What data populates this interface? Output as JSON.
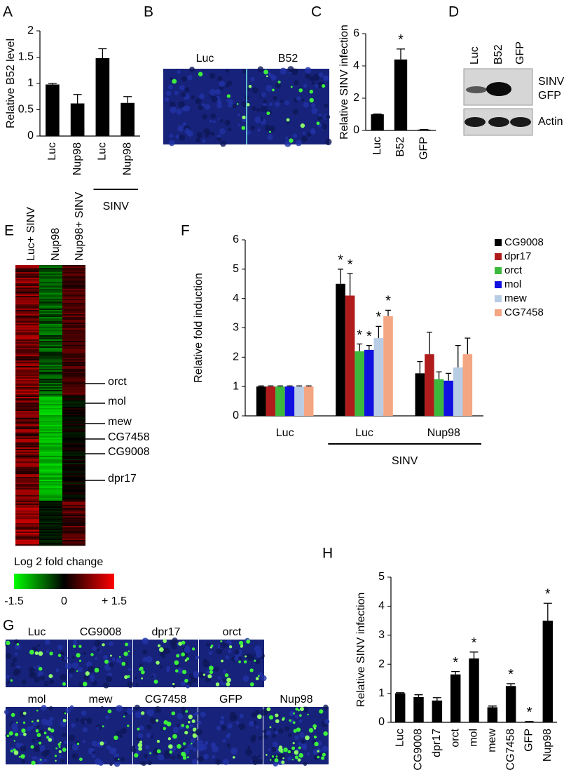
{
  "chart_data": [
    {
      "type": "bar",
      "panel": "A",
      "ylabel": "Relative B52 level",
      "categories": [
        "Luc",
        "Nup98",
        "Luc",
        "Nup98"
      ],
      "values": [
        0.98,
        0.62,
        1.48,
        0.63
      ],
      "errors": [
        0.02,
        0.17,
        0.18,
        0.12
      ],
      "color": "#000000",
      "ylim": [
        0,
        2
      ],
      "yticks": [
        0,
        0.5,
        1,
        1.5,
        2
      ],
      "annotation": "SINV"
    },
    {
      "type": "bar",
      "panel": "C",
      "ylabel": "Relative SINV  infection",
      "categories": [
        "Luc",
        "B52",
        "GFP"
      ],
      "values": [
        1,
        4.4,
        0.05
      ],
      "errors": [
        0.02,
        0.65,
        0.01
      ],
      "significance": [
        null,
        "*",
        null
      ],
      "color": "#000000",
      "ylim": [
        0,
        6
      ],
      "yticks": [
        0,
        2,
        4,
        6
      ]
    },
    {
      "type": "bar",
      "panel": "F",
      "ylabel": "Relative fold induction",
      "categories": [
        "Luc",
        "Luc",
        "Nup98"
      ],
      "annotation": "SINV",
      "legend": "right",
      "series": [
        {
          "name": "CG9008",
          "color": "#000000",
          "values": [
            1,
            4.5,
            1.45
          ],
          "errors": [
            0.02,
            0.5,
            0.4
          ],
          "significance": [
            null,
            "*",
            null
          ]
        },
        {
          "name": "dpr17",
          "color": "#b01c1c",
          "values": [
            1,
            4.1,
            2.1
          ],
          "errors": [
            0.02,
            0.75,
            0.75
          ],
          "significance": [
            null,
            "*",
            null
          ]
        },
        {
          "name": "orct",
          "color": "#3cb83c",
          "values": [
            1,
            2.2,
            1.25
          ],
          "errors": [
            0.02,
            0.25,
            0.25
          ],
          "significance": [
            null,
            "*",
            null
          ]
        },
        {
          "name": "mol",
          "color": "#1010e0",
          "values": [
            1,
            2.25,
            1.2
          ],
          "errors": [
            0.02,
            0.15,
            0.25
          ],
          "significance": [
            null,
            "*",
            null
          ]
        },
        {
          "name": "mew",
          "color": "#b8cce4",
          "values": [
            1,
            2.65,
            1.65
          ],
          "errors": [
            0.02,
            0.4,
            0.75
          ],
          "significance": [
            null,
            "*",
            null
          ]
        },
        {
          "name": "CG7458",
          "color": "#f4a582",
          "values": [
            1,
            3.4,
            2.1
          ],
          "errors": [
            0.02,
            0.2,
            0.55
          ],
          "significance": [
            null,
            "*",
            null
          ]
        }
      ],
      "ylim": [
        0,
        6
      ],
      "yticks": [
        0,
        1,
        2,
        3,
        4,
        5,
        6
      ]
    },
    {
      "type": "bar",
      "panel": "H",
      "ylabel": "Relative SINV  infection",
      "categories": [
        "Luc",
        "CG9008",
        "dpr17",
        "orct",
        "mol",
        "mew",
        "CG7458",
        "GFP",
        "Nup98"
      ],
      "values": [
        1,
        0.87,
        0.75,
        1.65,
        2.2,
        0.52,
        1.25,
        0.02,
        3.5
      ],
      "errors": [
        0.02,
        0.08,
        0.1,
        0.1,
        0.22,
        0.04,
        0.08,
        0.01,
        0.6
      ],
      "significance": [
        null,
        null,
        null,
        "*",
        "*",
        null,
        "*",
        "*",
        "*"
      ],
      "color": "#000000",
      "ylim": [
        0,
        5
      ],
      "yticks": [
        0,
        1,
        2,
        3,
        4,
        5
      ]
    }
  ],
  "panel_b": {
    "label": "B",
    "images": [
      "Luc",
      "B52"
    ]
  },
  "panel_d": {
    "label": "D",
    "lanes": [
      "Luc",
      "B52",
      "GFP"
    ],
    "band_labels": [
      [
        "SINV",
        "GFP"
      ],
      [
        "Actin"
      ]
    ]
  },
  "panel_e": {
    "label": "E",
    "columns": [
      "Luc+ SINV",
      "Nup98",
      "Nup98+ SINV"
    ],
    "genes": [
      "orct",
      "mol",
      "mew",
      "CG7458",
      "CG9008",
      "dpr17"
    ],
    "colorbar": {
      "title": "Log 2  fold change",
      "ticks": [
        -1.5,
        0,
        {
          "value": 1.5,
          "label": "+ 1.5"
        }
      ]
    }
  },
  "panel_g": {
    "label": "G",
    "images": [
      [
        "Luc",
        "CG9008",
        "dpr17",
        "orct"
      ],
      [
        "mol",
        "mew",
        "CG7458",
        "GFP",
        "Nup98"
      ]
    ]
  }
}
